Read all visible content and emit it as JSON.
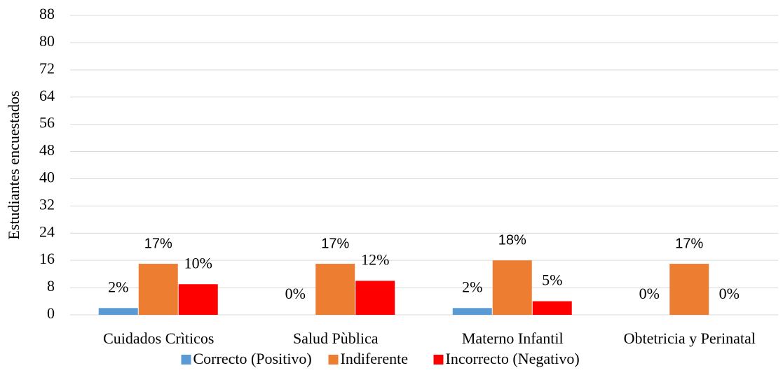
{
  "chart_data": {
    "type": "bar",
    "y_axis_label": "Estudiantes encuestados",
    "categories": [
      "Cuidados Crìticos",
      "Salud Pùblica",
      "Materno Infantil",
      "Obtetricia y Perinatal"
    ],
    "series": [
      {
        "name": "Correcto (Positivo)",
        "color": "#5b9bd5",
        "values": [
          2,
          0,
          2,
          0
        ],
        "value_labels": [
          "2%",
          "0%",
          "2%",
          "0%"
        ]
      },
      {
        "name": "Indiferente",
        "color": "#ed7d31",
        "values": [
          15,
          15,
          16,
          15
        ],
        "value_labels": [
          "17%",
          "17%",
          "18%",
          "17%"
        ]
      },
      {
        "name": "Incorrecto (Negativo)",
        "color": "#ff0000",
        "values": [
          9,
          10,
          4,
          0
        ],
        "value_labels": [
          "10%",
          "12%",
          "5%",
          "0%"
        ]
      }
    ],
    "ylim": [
      0,
      88
    ],
    "yticks": [
      0,
      8,
      16,
      24,
      32,
      40,
      48,
      56,
      64,
      72,
      80,
      88
    ],
    "grid": true,
    "legend": "bottom"
  }
}
